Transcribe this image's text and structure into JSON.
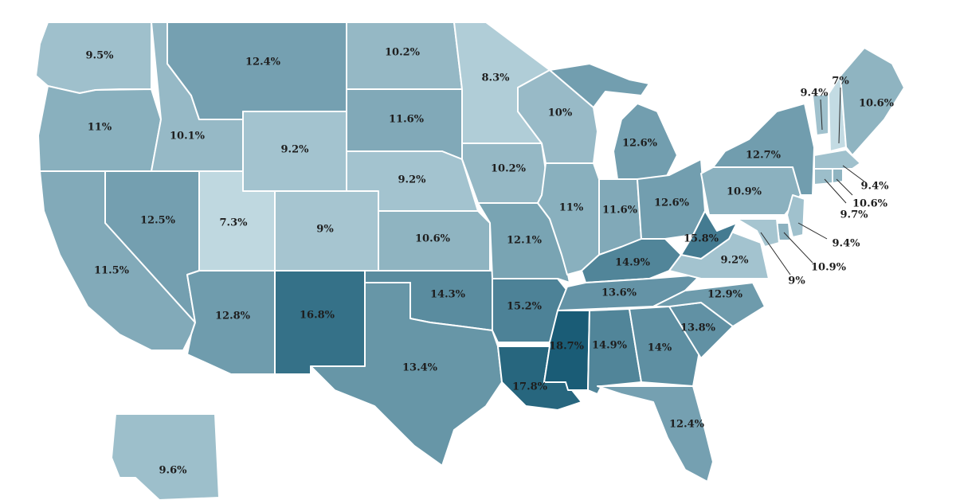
{
  "color_scale": {
    "low": "#c3dbe3",
    "high": "#1a5c76"
  },
  "states": [
    {
      "id": "WA",
      "label": "9.5%",
      "value": 9.5
    },
    {
      "id": "OR",
      "label": "11%",
      "value": 11
    },
    {
      "id": "CA",
      "label": "11.5%",
      "value": 11.5
    },
    {
      "id": "NV",
      "label": "12.5%",
      "value": 12.5
    },
    {
      "id": "ID",
      "label": "10.1%",
      "value": 10.1
    },
    {
      "id": "MT",
      "label": "12.4%",
      "value": 12.4
    },
    {
      "id": "WY",
      "label": "9.2%",
      "value": 9.2
    },
    {
      "id": "UT",
      "label": "7.3%",
      "value": 7.3
    },
    {
      "id": "AZ",
      "label": "12.8%",
      "value": 12.8
    },
    {
      "id": "CO",
      "label": "9%",
      "value": 9
    },
    {
      "id": "NM",
      "label": "16.8%",
      "value": 16.8
    },
    {
      "id": "ND",
      "label": "10.2%",
      "value": 10.2
    },
    {
      "id": "SD",
      "label": "11.6%",
      "value": 11.6
    },
    {
      "id": "NE",
      "label": "9.2%",
      "value": 9.2
    },
    {
      "id": "KS",
      "label": "10.6%",
      "value": 10.6
    },
    {
      "id": "OK",
      "label": "14.3%",
      "value": 14.3
    },
    {
      "id": "TX",
      "label": "13.4%",
      "value": 13.4
    },
    {
      "id": "MN",
      "label": "8.3%",
      "value": 8.3
    },
    {
      "id": "IA",
      "label": "10.2%",
      "value": 10.2
    },
    {
      "id": "MO",
      "label": "12.1%",
      "value": 12.1
    },
    {
      "id": "AR",
      "label": "15.2%",
      "value": 15.2
    },
    {
      "id": "LA",
      "label": "17.8%",
      "value": 17.8
    },
    {
      "id": "WI",
      "label": "10%",
      "value": 10
    },
    {
      "id": "IL",
      "label": "11%",
      "value": 11
    },
    {
      "id": "MI",
      "label": "12.6%",
      "value": 12.6
    },
    {
      "id": "IN",
      "label": "11.6%",
      "value": 11.6
    },
    {
      "id": "OH",
      "label": "12.6%",
      "value": 12.6
    },
    {
      "id": "KY",
      "label": "14.9%",
      "value": 14.9
    },
    {
      "id": "TN",
      "label": "13.6%",
      "value": 13.6
    },
    {
      "id": "MS",
      "label": "18.7%",
      "value": 18.7
    },
    {
      "id": "AL",
      "label": "14.9%",
      "value": 14.9
    },
    {
      "id": "GA",
      "label": "14%",
      "value": 14
    },
    {
      "id": "FL",
      "label": "12.4%",
      "value": 12.4
    },
    {
      "id": "SC",
      "label": "13.8%",
      "value": 13.8
    },
    {
      "id": "NC",
      "label": "12.9%",
      "value": 12.9
    },
    {
      "id": "VA",
      "label": "9.2%",
      "value": 9.2
    },
    {
      "id": "WV",
      "label": "15.8%",
      "value": 15.8
    },
    {
      "id": "PA",
      "label": "10.9%",
      "value": 10.9
    },
    {
      "id": "NY",
      "label": "12.7%",
      "value": 12.7
    },
    {
      "id": "ME",
      "label": "10.6%",
      "value": 10.6
    },
    {
      "id": "VT",
      "label": "9.4%",
      "value": 9.4
    },
    {
      "id": "NH",
      "label": "7%",
      "value": 7
    },
    {
      "id": "MA",
      "label": "9.4%",
      "value": 9.4
    },
    {
      "id": "RI",
      "label": "10.6%",
      "value": 10.6
    },
    {
      "id": "CT",
      "label": "9.7%",
      "value": 9.7
    },
    {
      "id": "NJ",
      "label": "9.4%",
      "value": 9.4
    },
    {
      "id": "DE",
      "label": "10.9%",
      "value": 10.9
    },
    {
      "id": "MD",
      "label": "9%",
      "value": 9
    },
    {
      "id": "AK",
      "label": "9.6%",
      "value": 9.6
    }
  ]
}
